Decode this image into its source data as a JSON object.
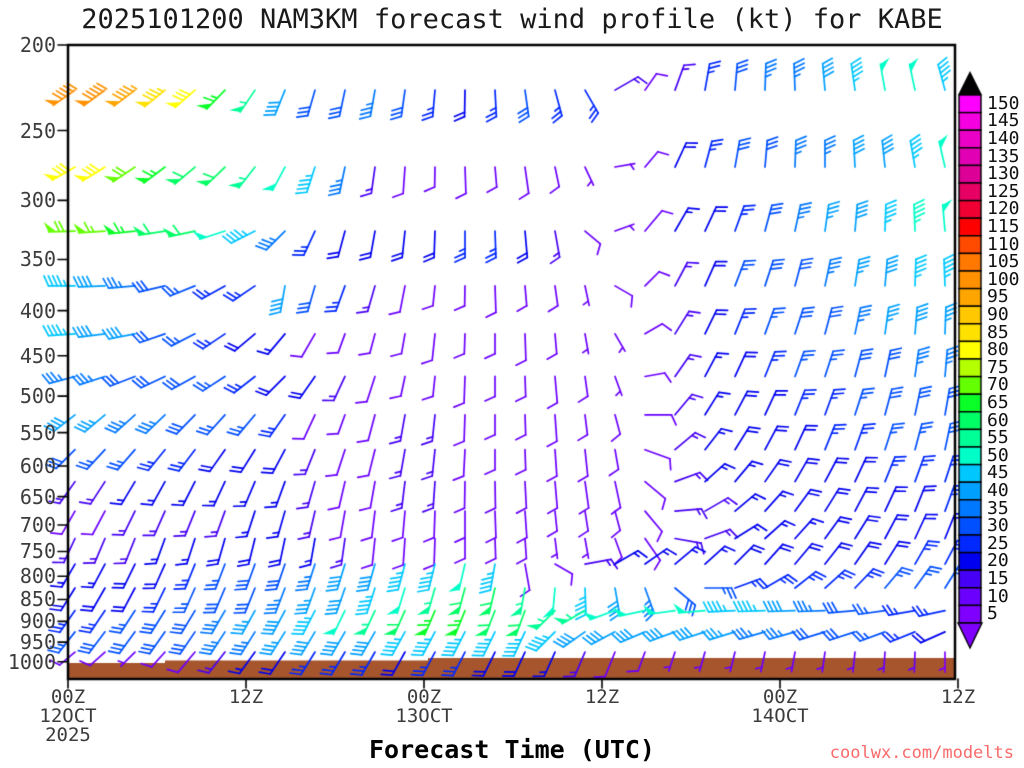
{
  "title": "2025101200 NAM3KM forecast wind profile (kt) for KABE",
  "credit": "coolwx.com/modelts",
  "plot": {
    "x_axis": {
      "label": "Forecast Time (UTC)",
      "ticks": [
        {
          "lines": [
            "00Z",
            "12OCT",
            "2025"
          ]
        },
        {
          "lines": [
            "12Z"
          ]
        },
        {
          "lines": [
            "00Z",
            "13OCT"
          ]
        },
        {
          "lines": [
            "12Z"
          ]
        },
        {
          "lines": [
            "00Z",
            "14OCT"
          ]
        },
        {
          "lines": [
            "12Z"
          ]
        }
      ]
    },
    "y_axis": {
      "ticks": [
        200,
        250,
        300,
        350,
        400,
        450,
        500,
        550,
        600,
        650,
        700,
        750,
        800,
        850,
        900,
        950,
        1000
      ]
    }
  },
  "colorbar": {
    "values": [
      150,
      145,
      140,
      135,
      130,
      125,
      120,
      115,
      110,
      105,
      100,
      95,
      90,
      85,
      80,
      75,
      70,
      65,
      60,
      55,
      50,
      45,
      40,
      35,
      30,
      25,
      20,
      15,
      10,
      5
    ],
    "colors_top_down": [
      "#FF00FF",
      "#F500E1",
      "#EB00C8",
      "#E100B4",
      "#DC0096",
      "#E60064",
      "#F00032",
      "#FF0000",
      "#FF4B00",
      "#FF7800",
      "#FF9100",
      "#FFA500",
      "#FFC800",
      "#FFE100",
      "#FFFF00",
      "#B4FF00",
      "#64FF00",
      "#0AFF28",
      "#00FF64",
      "#00FF96",
      "#00FFC8",
      "#00C8FF",
      "#00A0FF",
      "#0078FF",
      "#0050FF",
      "#0028FF",
      "#0000F0",
      "#4600F5",
      "#6B00FF",
      "#7F00FF"
    ],
    "over_color": "#000000",
    "under_color": "#7F00FF"
  },
  "terrain": {
    "color": "#A6552D"
  },
  "chart_data": {
    "type": "wind-barb-time-height",
    "title": "2025101200 NAM3KM forecast wind profile (kt) for KABE",
    "xlabel": "Forecast Time (UTC)",
    "x_range_hours": [
      0,
      60
    ],
    "x_hours": [
      0,
      2,
      4,
      6,
      8,
      10,
      12,
      14,
      16,
      18,
      20,
      22,
      24,
      26,
      28,
      30,
      32,
      34,
      36,
      38,
      40,
      42,
      44,
      46,
      48,
      50,
      52,
      54,
      56,
      58
    ],
    "y_scale": "log-pressure",
    "y_range_hpa": [
      200,
      1000
    ],
    "levels_hpa": [
      225,
      275,
      325,
      375,
      425,
      475,
      525,
      575,
      625,
      675,
      725,
      775,
      825,
      875,
      925,
      975
    ],
    "speed_kt": [
      [
        100,
        100,
        95,
        85,
        80,
        65,
        55,
        40,
        30,
        30,
        35,
        30,
        25,
        20,
        25,
        30,
        25,
        25,
        15,
        10,
        15,
        25,
        30,
        35,
        35,
        40,
        45,
        50,
        50,
        45
      ],
      [
        80,
        80,
        70,
        65,
        62,
        60,
        55,
        50,
        45,
        35,
        15,
        12,
        10,
        12,
        10,
        12,
        10,
        8,
        8,
        10,
        20,
        25,
        30,
        30,
        35,
        35,
        40,
        40,
        45,
        50
      ],
      [
        70,
        68,
        65,
        62,
        60,
        50,
        45,
        35,
        25,
        22,
        22,
        20,
        22,
        25,
        25,
        22,
        15,
        10,
        8,
        12,
        18,
        22,
        25,
        30,
        35,
        38,
        40,
        45,
        48,
        50
      ],
      [
        45,
        42,
        35,
        30,
        28,
        26,
        25,
        40,
        30,
        25,
        15,
        12,
        10,
        10,
        12,
        10,
        10,
        8,
        10,
        10,
        15,
        22,
        28,
        30,
        32,
        35,
        38,
        40,
        45,
        45
      ],
      [
        45,
        42,
        40,
        32,
        28,
        25,
        22,
        18,
        12,
        10,
        10,
        10,
        12,
        10,
        10,
        12,
        10,
        8,
        8,
        10,
        15,
        20,
        25,
        28,
        30,
        32,
        35,
        38,
        40,
        38
      ],
      [
        35,
        35,
        32,
        30,
        30,
        28,
        25,
        22,
        20,
        15,
        12,
        10,
        10,
        12,
        10,
        10,
        12,
        10,
        8,
        10,
        15,
        18,
        22,
        25,
        28,
        28,
        30,
        32,
        35,
        35
      ],
      [
        40,
        38,
        35,
        35,
        32,
        28,
        28,
        25,
        12,
        10,
        12,
        15,
        15,
        12,
        10,
        10,
        12,
        10,
        10,
        12,
        15,
        18,
        20,
        22,
        25,
        25,
        28,
        30,
        30,
        32
      ],
      [
        30,
        28,
        28,
        25,
        25,
        22,
        22,
        20,
        15,
        12,
        12,
        15,
        15,
        12,
        10,
        10,
        12,
        12,
        10,
        12,
        15,
        18,
        20,
        22,
        22,
        25,
        25,
        28,
        28,
        30
      ],
      [
        15,
        15,
        18,
        18,
        18,
        18,
        18,
        18,
        15,
        12,
        12,
        15,
        15,
        12,
        12,
        12,
        12,
        12,
        12,
        12,
        15,
        18,
        18,
        20,
        20,
        22,
        22,
        25,
        25,
        25
      ],
      [
        12,
        12,
        15,
        15,
        15,
        15,
        18,
        18,
        15,
        12,
        12,
        12,
        12,
        12,
        12,
        12,
        10,
        10,
        10,
        12,
        15,
        15,
        18,
        18,
        20,
        20,
        22,
        22,
        22,
        25
      ],
      [
        15,
        15,
        15,
        18,
        18,
        20,
        20,
        20,
        18,
        15,
        12,
        12,
        12,
        10,
        10,
        10,
        8,
        8,
        10,
        12,
        15,
        15,
        18,
        18,
        18,
        20,
        20,
        22,
        22,
        22
      ],
      [
        18,
        18,
        20,
        22,
        25,
        28,
        30,
        32,
        35,
        40,
        40,
        45,
        45,
        50,
        45,
        12,
        10,
        15,
        18,
        18,
        18,
        18,
        20,
        20,
        20,
        20,
        22,
        22,
        25,
        25
      ],
      [
        20,
        20,
        22,
        25,
        28,
        30,
        32,
        35,
        38,
        40,
        45,
        50,
        55,
        60,
        60,
        55,
        50,
        45,
        40,
        35,
        30,
        28,
        25,
        25,
        25,
        25,
        25,
        28,
        28,
        30
      ],
      [
        25,
        25,
        28,
        30,
        32,
        35,
        38,
        40,
        45,
        50,
        55,
        60,
        65,
        65,
        60,
        60,
        55,
        55,
        50,
        50,
        50,
        50,
        45,
        45,
        40,
        35,
        30,
        28,
        25,
        25
      ],
      [
        28,
        30,
        30,
        32,
        32,
        35,
        35,
        38,
        40,
        40,
        42,
        45,
        45,
        45,
        45,
        45,
        45,
        42,
        40,
        40,
        40,
        40,
        38,
        35,
        35,
        32,
        30,
        28,
        25,
        22
      ],
      [
        10,
        10,
        8,
        10,
        12,
        15,
        18,
        22,
        25,
        25,
        25,
        22,
        25,
        25,
        22,
        20,
        18,
        15,
        12,
        10,
        8,
        8,
        8,
        8,
        8,
        8,
        8,
        8,
        8,
        5
      ]
    ],
    "dir_deg_from": [
      [
        235,
        234,
        233,
        231,
        229,
        224,
        214,
        202,
        196,
        192,
        190,
        188,
        185,
        181,
        177,
        172,
        165,
        150,
        60,
        35,
        20,
        10,
        5,
        2,
        358,
        355,
        352,
        350,
        348,
        345
      ],
      [
        240,
        238,
        236,
        233,
        230,
        226,
        218,
        208,
        198,
        192,
        188,
        184,
        181,
        178,
        175,
        172,
        168,
        155,
        80,
        40,
        25,
        15,
        10,
        5,
        2,
        0,
        357,
        354,
        350,
        347
      ],
      [
        268,
        266,
        264,
        261,
        258,
        252,
        243,
        225,
        205,
        195,
        190,
        186,
        182,
        180,
        178,
        175,
        170,
        130,
        70,
        40,
        30,
        25,
        20,
        15,
        12,
        8,
        5,
        2,
        358,
        355
      ],
      [
        270,
        268,
        265,
        257,
        248,
        241,
        236,
        190,
        196,
        200,
        196,
        191,
        186,
        181,
        178,
        175,
        172,
        168,
        120,
        45,
        28,
        24,
        21,
        18,
        15,
        12,
        9,
        5,
        2,
        358
      ],
      [
        266,
        263,
        259,
        251,
        243,
        236,
        230,
        220,
        210,
        200,
        195,
        190,
        186,
        182,
        180,
        178,
        175,
        170,
        150,
        60,
        32,
        26,
        22,
        20,
        18,
        15,
        12,
        8,
        5,
        2
      ],
      [
        255,
        252,
        249,
        245,
        241,
        237,
        232,
        225,
        215,
        205,
        198,
        192,
        186,
        182,
        180,
        178,
        175,
        172,
        160,
        80,
        35,
        28,
        25,
        22,
        20,
        18,
        15,
        12,
        8,
        5
      ],
      [
        232,
        230,
        228,
        226,
        224,
        222,
        220,
        215,
        205,
        200,
        195,
        190,
        186,
        182,
        180,
        178,
        176,
        173,
        165,
        90,
        40,
        32,
        28,
        25,
        22,
        20,
        18,
        15,
        12,
        10
      ],
      [
        225,
        223,
        221,
        219,
        217,
        215,
        212,
        208,
        202,
        198,
        194,
        190,
        186,
        183,
        180,
        178,
        176,
        174,
        170,
        110,
        50,
        38,
        32,
        28,
        25,
        22,
        20,
        18,
        15,
        12
      ],
      [
        215,
        213,
        211,
        209,
        207,
        205,
        203,
        200,
        196,
        193,
        190,
        187,
        184,
        181,
        179,
        177,
        175,
        172,
        168,
        130,
        70,
        48,
        40,
        35,
        30,
        28,
        25,
        22,
        20,
        18
      ],
      [
        210,
        208,
        206,
        204,
        202,
        200,
        198,
        196,
        193,
        190,
        187,
        185,
        182,
        180,
        178,
        176,
        174,
        171,
        165,
        140,
        85,
        60,
        50,
        42,
        36,
        32,
        28,
        25,
        22,
        20
      ],
      [
        205,
        203,
        202,
        200,
        198,
        196,
        194,
        192,
        190,
        188,
        186,
        184,
        182,
        180,
        178,
        176,
        173,
        170,
        160,
        145,
        100,
        70,
        58,
        48,
        42,
        36,
        32,
        28,
        25,
        22
      ],
      [
        210,
        208,
        206,
        204,
        202,
        201,
        200,
        199,
        198,
        197,
        196,
        195,
        194,
        193,
        190,
        170,
        120,
        80,
        60,
        55,
        50,
        48,
        45,
        42,
        40,
        38,
        35,
        32,
        30,
        28
      ],
      [
        212,
        210,
        208,
        206,
        204,
        203,
        202,
        201,
        200,
        199,
        198,
        197,
        196,
        195,
        193,
        190,
        185,
        178,
        170,
        160,
        130,
        90,
        70,
        60,
        52,
        48,
        44,
        40,
        36,
        32
      ],
      [
        215,
        214,
        213,
        212,
        211,
        210,
        209,
        208,
        207,
        206,
        205,
        204,
        203,
        202,
        201,
        200,
        225,
        240,
        250,
        258,
        262,
        265,
        267,
        268,
        268,
        268,
        265,
        262,
        260,
        258
      ],
      [
        218,
        217,
        216,
        215,
        214,
        213,
        212,
        212,
        211,
        210,
        210,
        209,
        208,
        207,
        206,
        205,
        225,
        235,
        242,
        247,
        250,
        252,
        253,
        254,
        254,
        253,
        252,
        250,
        248,
        246
      ],
      [
        230,
        228,
        225,
        222,
        220,
        218,
        216,
        214,
        212,
        211,
        210,
        209,
        208,
        207,
        206,
        205,
        204,
        203,
        202,
        200,
        198,
        196,
        194,
        192,
        190,
        188,
        186,
        184,
        182,
        180
      ]
    ]
  }
}
